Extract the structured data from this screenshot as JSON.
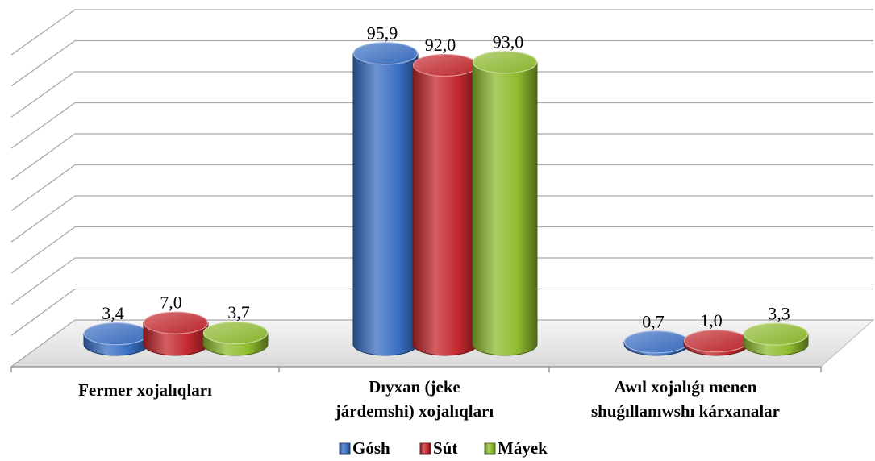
{
  "chart_data": {
    "type": "bar",
    "categories": [
      "Fermer xojalıqları",
      "Dıyxan (jeke járdemshi) xojalıqları",
      "Awıl xojalıǵı menen shuǵıllanıwshı kárxanalar"
    ],
    "category_lines": [
      [
        "Fermer xojalıqları"
      ],
      [
        "Dıyxan (jeke",
        "járdemshi) xojalıqları"
      ],
      [
        "Awıl xojalıǵı menen",
        "shuǵıllanıwshı kárxanalar"
      ]
    ],
    "series": [
      {
        "name": "Gósh",
        "values": [
          3.4,
          95.9,
          0.7
        ],
        "labels": [
          "3,4",
          "95,9",
          "0,7"
        ],
        "color": "#3a6fc4"
      },
      {
        "name": "Sút",
        "values": [
          7.0,
          92.0,
          1.0
        ],
        "labels": [
          "7,0",
          "92,0",
          "1,0"
        ],
        "color": "#c3282d"
      },
      {
        "name": "Máyek",
        "values": [
          3.7,
          93.0,
          3.3
        ],
        "labels": [
          "3,7",
          "93,0",
          "3,3"
        ],
        "color": "#8fbc2f"
      }
    ],
    "ylim": [
      0,
      100
    ],
    "grid": true,
    "legend": "bottom",
    "style": "3d-cylinder"
  }
}
